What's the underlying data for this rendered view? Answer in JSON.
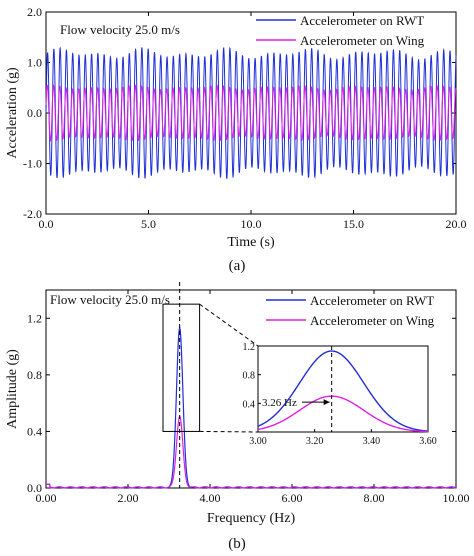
{
  "chart_data": [
    {
      "type": "line",
      "panel_label": "(a)",
      "annotation": "Flow velocity 25.0 m/s",
      "xlabel": "Time (s)",
      "ylabel": "Acceleration (g)",
      "xlim": [
        0,
        20
      ],
      "ylim": [
        -2,
        2
      ],
      "xticks": [
        "0.0",
        "5.0",
        "10.0",
        "15.0",
        "20.0"
      ],
      "yticks": [
        "-2.0",
        "-1.0",
        "0.0",
        "1.0",
        "2.0"
      ],
      "legend_position": "top-right",
      "signal_frequency_hz": 3.26,
      "series": [
        {
          "name": "Accelerometer on RWT",
          "color": "#1f2fd6",
          "amplitude_range": [
            1.05,
            1.3
          ]
        },
        {
          "name": "Accelerometer on Wing",
          "color": "#e020e0",
          "amplitude_range": [
            0.45,
            0.55
          ]
        }
      ]
    },
    {
      "type": "line",
      "panel_label": "(b)",
      "annotation": "Flow velocity 25.0 m/s",
      "xlabel": "Frequency (Hz)",
      "ylabel": "Amplitude (g)",
      "xlim": [
        0,
        10
      ],
      "ylim": [
        0,
        1.4
      ],
      "xticks": [
        "0.00",
        "2.00",
        "4.00",
        "6.00",
        "8.00",
        "10.00"
      ],
      "yticks": [
        "0.0",
        "0.4",
        "0.8",
        "1.2"
      ],
      "legend_position": "top-right",
      "peak_frequency_hz": 3.26,
      "series": [
        {
          "name": "Accelerometer on RWT",
          "color": "#1f2fd6",
          "peak": 1.13
        },
        {
          "name": "Accelerometer on Wing",
          "color": "#e020e0",
          "peak": 0.5
        }
      ],
      "inset": {
        "xlim": [
          3.0,
          3.6
        ],
        "ylim": [
          0,
          1.2
        ],
        "xticks": [
          "3.00",
          "3.20",
          "3.40",
          "3.60"
        ],
        "yticks": [
          "0.4",
          "0.8",
          "1.2"
        ],
        "annotation": "3.26 Hz"
      }
    }
  ]
}
